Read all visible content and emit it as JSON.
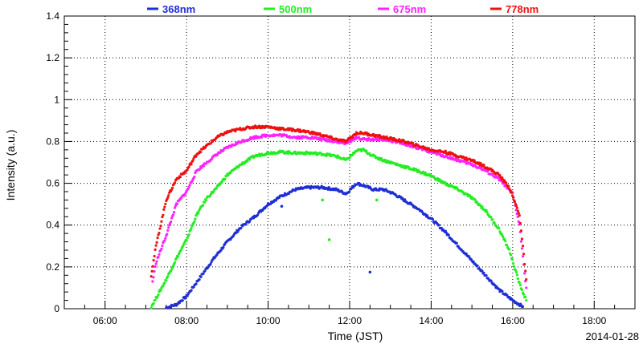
{
  "chart_data": {
    "type": "scatter",
    "xlabel": "Time (JST)",
    "ylabel": "Intensity (a.u.)",
    "date_label": "2014-01-28",
    "xlim": [
      "05:00",
      "19:00"
    ],
    "ylim": [
      0,
      1.4
    ],
    "grid": true,
    "legend_placement": "top",
    "x_ticks": [
      "06:00",
      "08:00",
      "10:00",
      "12:00",
      "14:00",
      "16:00",
      "18:00"
    ],
    "y_ticks": [
      "0",
      "0.2",
      "0.4",
      "0.6",
      "0.8",
      "1",
      "1.2",
      "1.4"
    ],
    "series": [
      {
        "name": "368nm",
        "color": "#1f2fd6",
        "x": [
          "07:30",
          "07:45",
          "08:00",
          "08:20",
          "08:40",
          "09:00",
          "09:20",
          "09:40",
          "10:00",
          "10:20",
          "10:40",
          "11:00",
          "11:20",
          "11:40",
          "11:55",
          "12:10",
          "12:20",
          "12:35",
          "12:50",
          "13:05",
          "13:20",
          "13:40",
          "14:00",
          "14:20",
          "14:40",
          "15:00",
          "15:20",
          "15:40",
          "16:00",
          "16:15"
        ],
        "y": [
          0.005,
          0.02,
          0.06,
          0.15,
          0.24,
          0.32,
          0.39,
          0.44,
          0.5,
          0.54,
          0.57,
          0.58,
          0.58,
          0.57,
          0.55,
          0.6,
          0.59,
          0.57,
          0.57,
          0.55,
          0.52,
          0.48,
          0.43,
          0.37,
          0.3,
          0.23,
          0.16,
          0.09,
          0.04,
          0.01
        ],
        "outliers": [
          {
            "x": "10:20",
            "y": 0.49
          },
          {
            "x": "12:30",
            "y": 0.175
          }
        ]
      },
      {
        "name": "500nm",
        "color": "#22ee22",
        "x": [
          "07:08",
          "07:15",
          "07:30",
          "07:45",
          "08:00",
          "08:15",
          "08:30",
          "08:45",
          "09:00",
          "09:20",
          "09:40",
          "10:00",
          "10:20",
          "10:40",
          "11:00",
          "11:20",
          "11:40",
          "11:55",
          "12:10",
          "12:20",
          "12:35",
          "12:50",
          "13:05",
          "13:20",
          "13:40",
          "14:00",
          "14:20",
          "14:40",
          "15:00",
          "15:20",
          "15:40",
          "15:55",
          "16:10",
          "16:20"
        ],
        "y": [
          0.01,
          0.05,
          0.14,
          0.24,
          0.33,
          0.45,
          0.53,
          0.58,
          0.64,
          0.69,
          0.73,
          0.745,
          0.75,
          0.745,
          0.745,
          0.74,
          0.73,
          0.71,
          0.755,
          0.76,
          0.73,
          0.71,
          0.695,
          0.68,
          0.66,
          0.635,
          0.6,
          0.57,
          0.53,
          0.47,
          0.38,
          0.28,
          0.12,
          0.04
        ],
        "outliers": [
          {
            "x": "11:20",
            "y": 0.52
          },
          {
            "x": "11:30",
            "y": 0.33
          },
          {
            "x": "12:40",
            "y": 0.52
          }
        ]
      },
      {
        "name": "675nm",
        "color": "#ff22ff",
        "x": [
          "07:10",
          "07:15",
          "07:30",
          "07:45",
          "08:00",
          "08:15",
          "08:30",
          "08:45",
          "09:00",
          "09:20",
          "09:40",
          "10:00",
          "10:20",
          "10:40",
          "11:00",
          "11:20",
          "11:40",
          "11:55",
          "12:10",
          "12:20",
          "12:35",
          "12:50",
          "13:05",
          "13:20",
          "13:40",
          "14:00",
          "14:20",
          "14:40",
          "15:00",
          "15:20",
          "15:40",
          "16:00",
          "16:10",
          "16:20"
        ],
        "y": [
          0.13,
          0.22,
          0.35,
          0.5,
          0.56,
          0.66,
          0.7,
          0.74,
          0.77,
          0.8,
          0.82,
          0.83,
          0.83,
          0.82,
          0.82,
          0.81,
          0.8,
          0.79,
          0.82,
          0.81,
          0.81,
          0.81,
          0.8,
          0.79,
          0.77,
          0.75,
          0.73,
          0.71,
          0.69,
          0.66,
          0.62,
          0.55,
          0.4,
          0.1
        ]
      },
      {
        "name": "778nm",
        "color": "#ee1111",
        "x": [
          "07:08",
          "07:15",
          "07:30",
          "07:45",
          "08:00",
          "08:15",
          "08:30",
          "08:45",
          "09:00",
          "09:20",
          "09:40",
          "10:00",
          "10:20",
          "10:40",
          "11:00",
          "11:20",
          "11:40",
          "11:55",
          "12:10",
          "12:20",
          "12:35",
          "12:50",
          "13:05",
          "13:20",
          "13:40",
          "14:00",
          "14:20",
          "14:40",
          "15:00",
          "15:20",
          "15:40",
          "15:55",
          "16:10",
          "16:20"
        ],
        "y": [
          0.16,
          0.3,
          0.52,
          0.62,
          0.66,
          0.74,
          0.78,
          0.82,
          0.845,
          0.86,
          0.87,
          0.87,
          0.86,
          0.855,
          0.845,
          0.83,
          0.81,
          0.8,
          0.84,
          0.84,
          0.83,
          0.82,
          0.81,
          0.8,
          0.78,
          0.76,
          0.75,
          0.73,
          0.71,
          0.68,
          0.64,
          0.58,
          0.45,
          0.14
        ]
      }
    ]
  }
}
